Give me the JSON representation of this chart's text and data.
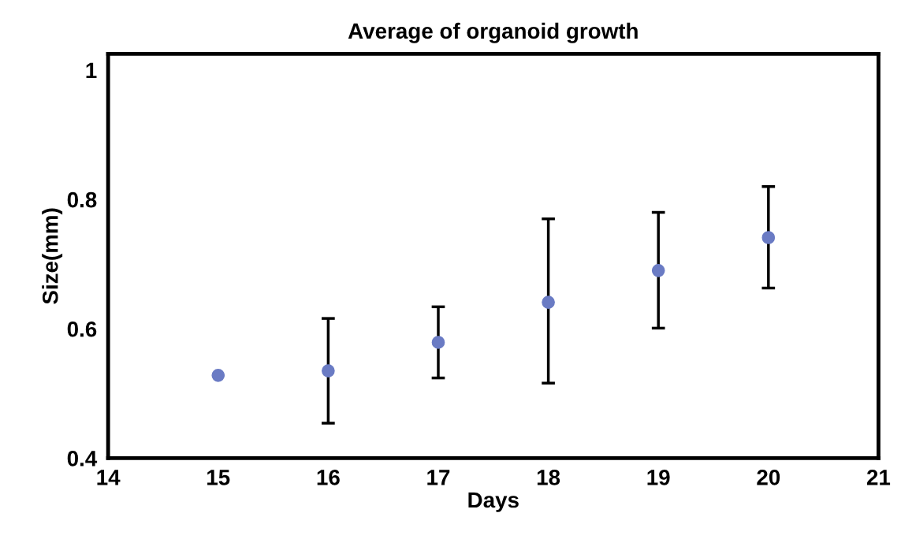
{
  "chart_data": {
    "type": "scatter",
    "title": "Average of organoid growth",
    "xlabel": "Days",
    "ylabel": "Size(mm)",
    "x": [
      15,
      16,
      17,
      18,
      19,
      20
    ],
    "series": [
      {
        "color": "#6a7bc4",
        "values": [
          0.528,
          0.535,
          0.579,
          0.641,
          0.69,
          0.741
        ],
        "errors": [
          null,
          [
            0.454,
            0.616
          ],
          [
            0.524,
            0.634
          ],
          [
            0.516,
            0.77
          ],
          [
            0.601,
            0.78
          ],
          [
            0.663,
            0.82
          ]
        ]
      }
    ],
    "xlim": [
      14,
      21
    ],
    "xticks": [
      14,
      15,
      16,
      17,
      18,
      19,
      20,
      21
    ],
    "ylim": [
      0.4,
      1.025
    ],
    "yticks": [
      0.4,
      0.6,
      0.8,
      1
    ],
    "grid": false,
    "legend": false,
    "marker": "circle"
  }
}
